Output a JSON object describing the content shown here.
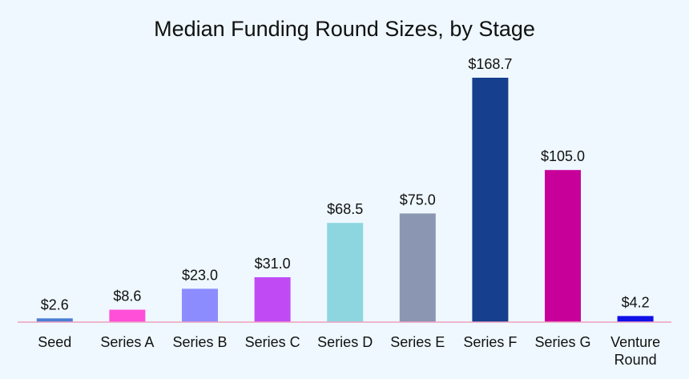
{
  "chart_data": {
    "type": "bar",
    "title": "Median Funding Round Sizes, by Stage",
    "xlabel": "",
    "ylabel": "",
    "categories": [
      "Seed",
      "Series A",
      "Series B",
      "Series C",
      "Series D",
      "Series E",
      "Series F",
      "Series G",
      "Venture Round"
    ],
    "values": [
      2.6,
      8.6,
      23.0,
      31.0,
      68.5,
      75.0,
      168.7,
      105.0,
      4.2
    ],
    "value_labels": [
      "$2.6",
      "$8.6",
      "$23.0",
      "$31.0",
      "$68.5",
      "$75.0",
      "$168.7",
      "$105.0",
      "$4.2"
    ],
    "colors": [
      "#4a7fd4",
      "#ff4fd8",
      "#8c8cff",
      "#c04bf5",
      "#8dd6df",
      "#8a96b2",
      "#163f8e",
      "#c8009a",
      "#1010e8"
    ],
    "ylim": [
      0,
      168.7
    ],
    "grid": false,
    "legend": "none",
    "baseline_color": "#f0a0c0",
    "background": "#eef8fe"
  }
}
